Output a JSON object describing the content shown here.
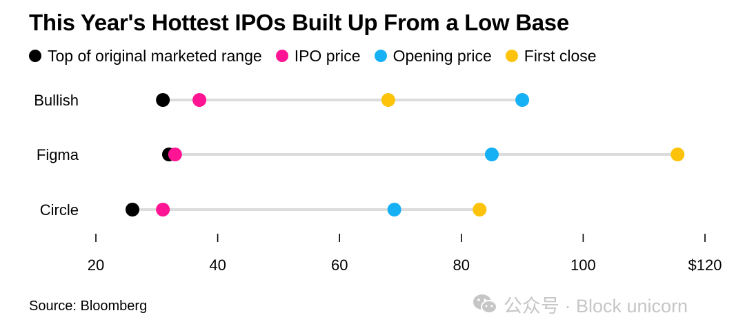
{
  "title": "This Year's Hottest IPOs Built Up From a Low Base",
  "legend": [
    {
      "label": "Top of original marketed range",
      "color": "#000000"
    },
    {
      "label": "IPO price",
      "color": "#ff1493"
    },
    {
      "label": "Opening price",
      "color": "#16b0f4"
    },
    {
      "label": "First close",
      "color": "#fcc30a"
    }
  ],
  "chart_data": {
    "type": "dot",
    "title": "This Year's Hottest IPOs Built Up From a Low Base",
    "categories": [
      "Bullish",
      "Figma",
      "Circle"
    ],
    "series": [
      {
        "name": "Top of original marketed range",
        "color": "#000000",
        "values": [
          31,
          32,
          26
        ]
      },
      {
        "name": "IPO price",
        "color": "#ff1493",
        "values": [
          37,
          33,
          31
        ]
      },
      {
        "name": "Opening price",
        "color": "#16b0f4",
        "values": [
          90,
          85,
          69
        ]
      },
      {
        "name": "First close",
        "color": "#fcc30a",
        "values": [
          68,
          115.5,
          83
        ]
      }
    ],
    "xlim": [
      20,
      120
    ],
    "xticks": [
      20,
      40,
      60,
      80,
      100,
      120
    ],
    "xtick_labels": [
      "20",
      "40",
      "60",
      "80",
      "100",
      "$120"
    ],
    "xlabel": "",
    "ylabel": "",
    "grid": false,
    "legend_position": "top-left"
  },
  "source": "Source: Bloomberg",
  "watermark": {
    "text": "公众号 · Block unicorn",
    "icon": "wechat-icon"
  }
}
